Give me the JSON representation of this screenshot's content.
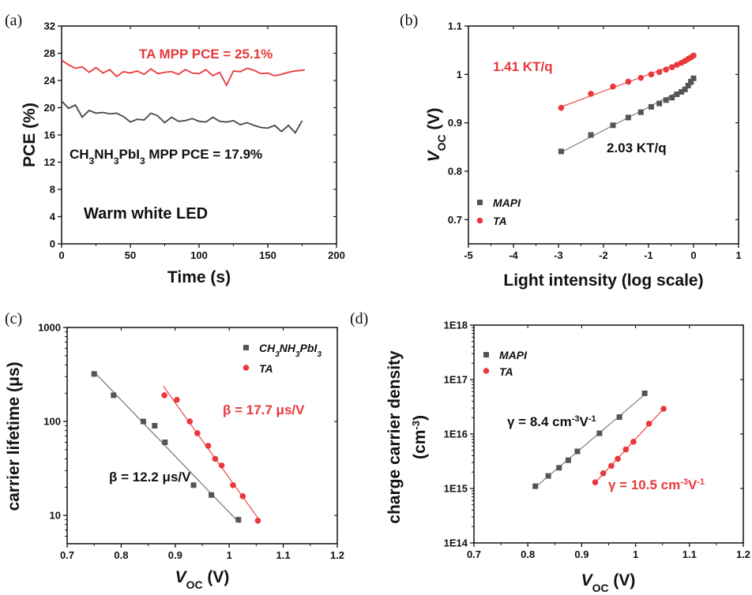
{
  "chart_data": [
    {
      "panel": "(a)",
      "type": "line",
      "xlabel": "Time (s)",
      "ylabel": "PCE (%)",
      "xlim": [
        0,
        200
      ],
      "ylim": [
        0,
        32
      ],
      "xticks": [
        0,
        50,
        100,
        150,
        200
      ],
      "yticks": [
        0,
        4,
        8,
        12,
        16,
        20,
        24,
        28,
        32
      ],
      "grid": false,
      "series": [
        {
          "color": "#e8383b",
          "x": [
            0,
            5,
            10,
            15,
            20,
            25,
            30,
            35,
            40,
            45,
            50,
            55,
            60,
            65,
            70,
            75,
            80,
            85,
            90,
            95,
            100,
            105,
            110,
            115,
            120,
            125,
            130,
            135,
            140,
            145,
            150,
            155,
            160,
            165,
            170,
            175,
            177
          ],
          "y": [
            27.0,
            26.3,
            25.8,
            26.0,
            25.2,
            25.9,
            25.1,
            25.6,
            24.6,
            25.3,
            25.1,
            25.4,
            24.9,
            25.7,
            25.0,
            25.2,
            25.3,
            24.9,
            25.6,
            25.1,
            25.0,
            25.6,
            24.7,
            25.2,
            23.3,
            25.4,
            25.3,
            25.8,
            25.5,
            25.0,
            25.1,
            24.7,
            24.9,
            25.2,
            25.4,
            25.5,
            25.6
          ]
        },
        {
          "color": "#444444",
          "x": [
            0,
            5,
            10,
            15,
            20,
            25,
            30,
            35,
            40,
            45,
            50,
            55,
            60,
            65,
            70,
            75,
            80,
            85,
            90,
            95,
            100,
            105,
            110,
            115,
            120,
            125,
            130,
            135,
            140,
            145,
            150,
            155,
            160,
            165,
            170,
            175
          ],
          "y": [
            21.0,
            19.9,
            20.4,
            18.6,
            19.6,
            19.2,
            19.3,
            19.1,
            19.2,
            18.7,
            17.9,
            18.3,
            18.2,
            19.2,
            18.8,
            17.8,
            18.6,
            18.0,
            18.1,
            18.4,
            18.0,
            17.9,
            18.6,
            18.0,
            17.9,
            18.1,
            17.5,
            17.8,
            17.4,
            17.1,
            17.0,
            17.4,
            16.5,
            17.4,
            16.3,
            18.1
          ]
        }
      ],
      "annotations": [
        {
          "text": "TA MPP PCE = 25.1%",
          "color": "#e8383b"
        },
        {
          "text": "CH₃NH₃PbI₃ MPP PCE = 17.9%",
          "color": "#111111"
        },
        {
          "text": "Warm white LED",
          "color": "#111111"
        }
      ]
    },
    {
      "panel": "(b)",
      "type": "scatter",
      "xlabel": "Light intensity (log scale)",
      "ylabel": "VOC (V)",
      "xlim": [
        -5,
        1
      ],
      "ylim": [
        0.65,
        1.1
      ],
      "xticks": [
        -5,
        -4,
        -3,
        -2,
        -1,
        0,
        1
      ],
      "yticks": [
        0.7,
        0.8,
        0.9,
        1.0,
        1.1
      ],
      "yticklabels": [
        "0.7",
        "0.8",
        "0.9",
        "1",
        "1.1"
      ],
      "grid": false,
      "legend_position": "bottom-left",
      "series": [
        {
          "name": "MAPI",
          "marker": "square",
          "color": "#555555",
          "fit_color": "#777777",
          "x": [
            -2.94,
            -2.28,
            -1.79,
            -1.45,
            -1.17,
            -0.94,
            -0.76,
            -0.61,
            -0.48,
            -0.37,
            -0.27,
            -0.19,
            -0.12,
            -0.06,
            0
          ],
          "y": [
            0.841,
            0.875,
            0.895,
            0.911,
            0.922,
            0.933,
            0.94,
            0.947,
            0.952,
            0.959,
            0.964,
            0.969,
            0.977,
            0.985,
            0.992
          ]
        },
        {
          "name": "TA",
          "marker": "circle",
          "color": "#e8383b",
          "fit_color": "#e8383b",
          "x": [
            -2.94,
            -2.28,
            -1.79,
            -1.45,
            -1.17,
            -0.94,
            -0.76,
            -0.61,
            -0.48,
            -0.37,
            -0.27,
            -0.19,
            -0.12,
            -0.06,
            0
          ],
          "y": [
            0.931,
            0.96,
            0.975,
            0.985,
            0.993,
            1.0,
            1.005,
            1.01,
            1.015,
            1.02,
            1.024,
            1.028,
            1.032,
            1.035,
            1.039
          ]
        }
      ],
      "annotations": [
        {
          "text": "1.41 KT/q",
          "color": "#e8383b"
        },
        {
          "text": "2.03 KT/q",
          "color": "#111111"
        }
      ]
    },
    {
      "panel": "(c)",
      "type": "scatter",
      "xlabel": "VOC (V)",
      "ylabel": "carrier lifetime (μs)",
      "xlim": [
        0.7,
        1.2
      ],
      "ylim": [
        5,
        1000
      ],
      "yscale": "log",
      "xticks": [
        0.7,
        0.8,
        0.9,
        1.0,
        1.1,
        1.2
      ],
      "xticklabels": [
        "0.7",
        "0.8",
        "0.9",
        "1",
        "1.1",
        "1.2"
      ],
      "yticks": [
        10,
        100,
        1000
      ],
      "grid": false,
      "legend_position": "top-right",
      "series": [
        {
          "name": "CH₃NH₃PbI₃",
          "marker": "square",
          "color": "#555555",
          "fit_color": "#666666",
          "x": [
            0.75,
            0.786,
            0.841,
            0.862,
            0.881,
            0.934,
            0.967,
            1.017
          ],
          "y": [
            320,
            190,
            100,
            90,
            60,
            21,
            16.5,
            9
          ]
        },
        {
          "name": "TA",
          "marker": "circle",
          "color": "#e8383b",
          "fit_color": "#e8383b",
          "x": [
            0.88,
            0.903,
            0.927,
            0.941,
            0.961,
            0.974,
            0.986,
            1.007,
            1.025,
            1.053
          ],
          "y": [
            190,
            170,
            100,
            75,
            55,
            40,
            34,
            21,
            16,
            8.8
          ]
        }
      ],
      "annotations": [
        {
          "text": "β = 17.7 μs/V",
          "color": "#e8383b"
        },
        {
          "text": "β = 12.2 μs/V",
          "color": "#111111"
        }
      ]
    },
    {
      "panel": "(d)",
      "type": "scatter",
      "xlabel": "VOC (V)",
      "ylabel": "charge carrier density (cm⁻³)",
      "xlim": [
        0.7,
        1.2
      ],
      "ylim": [
        100000000000000.0,
        1e+18
      ],
      "yscale": "log",
      "xticks": [
        0.7,
        0.8,
        0.9,
        1.0,
        1.1,
        1.2
      ],
      "xticklabels": [
        "0.7",
        "0.8",
        "0.9",
        "1",
        "1.1",
        "1.2"
      ],
      "yticks": [
        100000000000000.0,
        1000000000000000.0,
        1e+16,
        1e+17,
        1e+18
      ],
      "yticklabels": [
        "1E14",
        "1E15",
        "1E16",
        "1E17",
        "1E18"
      ],
      "grid": false,
      "legend_position": "top-left",
      "series": [
        {
          "name": "MAPI",
          "marker": "square",
          "color": "#555555",
          "fit_color": "#777777",
          "x": [
            0.814,
            0.838,
            0.858,
            0.875,
            0.892,
            0.933,
            0.97,
            1.017
          ],
          "y": [
            1100000000000000.0,
            1700000000000000.0,
            2400000000000000.0,
            3300000000000000.0,
            4800000000000000.0,
            1.03e+16,
            2.05e+16,
            5.6e+16
          ]
        },
        {
          "name": "TA",
          "marker": "circle",
          "color": "#e8383b",
          "fit_color": "#e8383b",
          "x": [
            0.925,
            0.94,
            0.955,
            0.967,
            0.982,
            0.996,
            1.025,
            1.052
          ],
          "y": [
            1300000000000000.0,
            1900000000000000.0,
            2600000000000000.0,
            3500000000000000.0,
            5200000000000000.0,
            7200000000000000.0,
            1.55e+16,
            2.9e+16
          ]
        }
      ],
      "annotations": [
        {
          "text": "γ = 8.4 cm⁻³V⁻¹",
          "color": "#111111"
        },
        {
          "text": "γ = 10.5 cm⁻³V⁻¹",
          "color": "#e8383b"
        }
      ]
    }
  ]
}
